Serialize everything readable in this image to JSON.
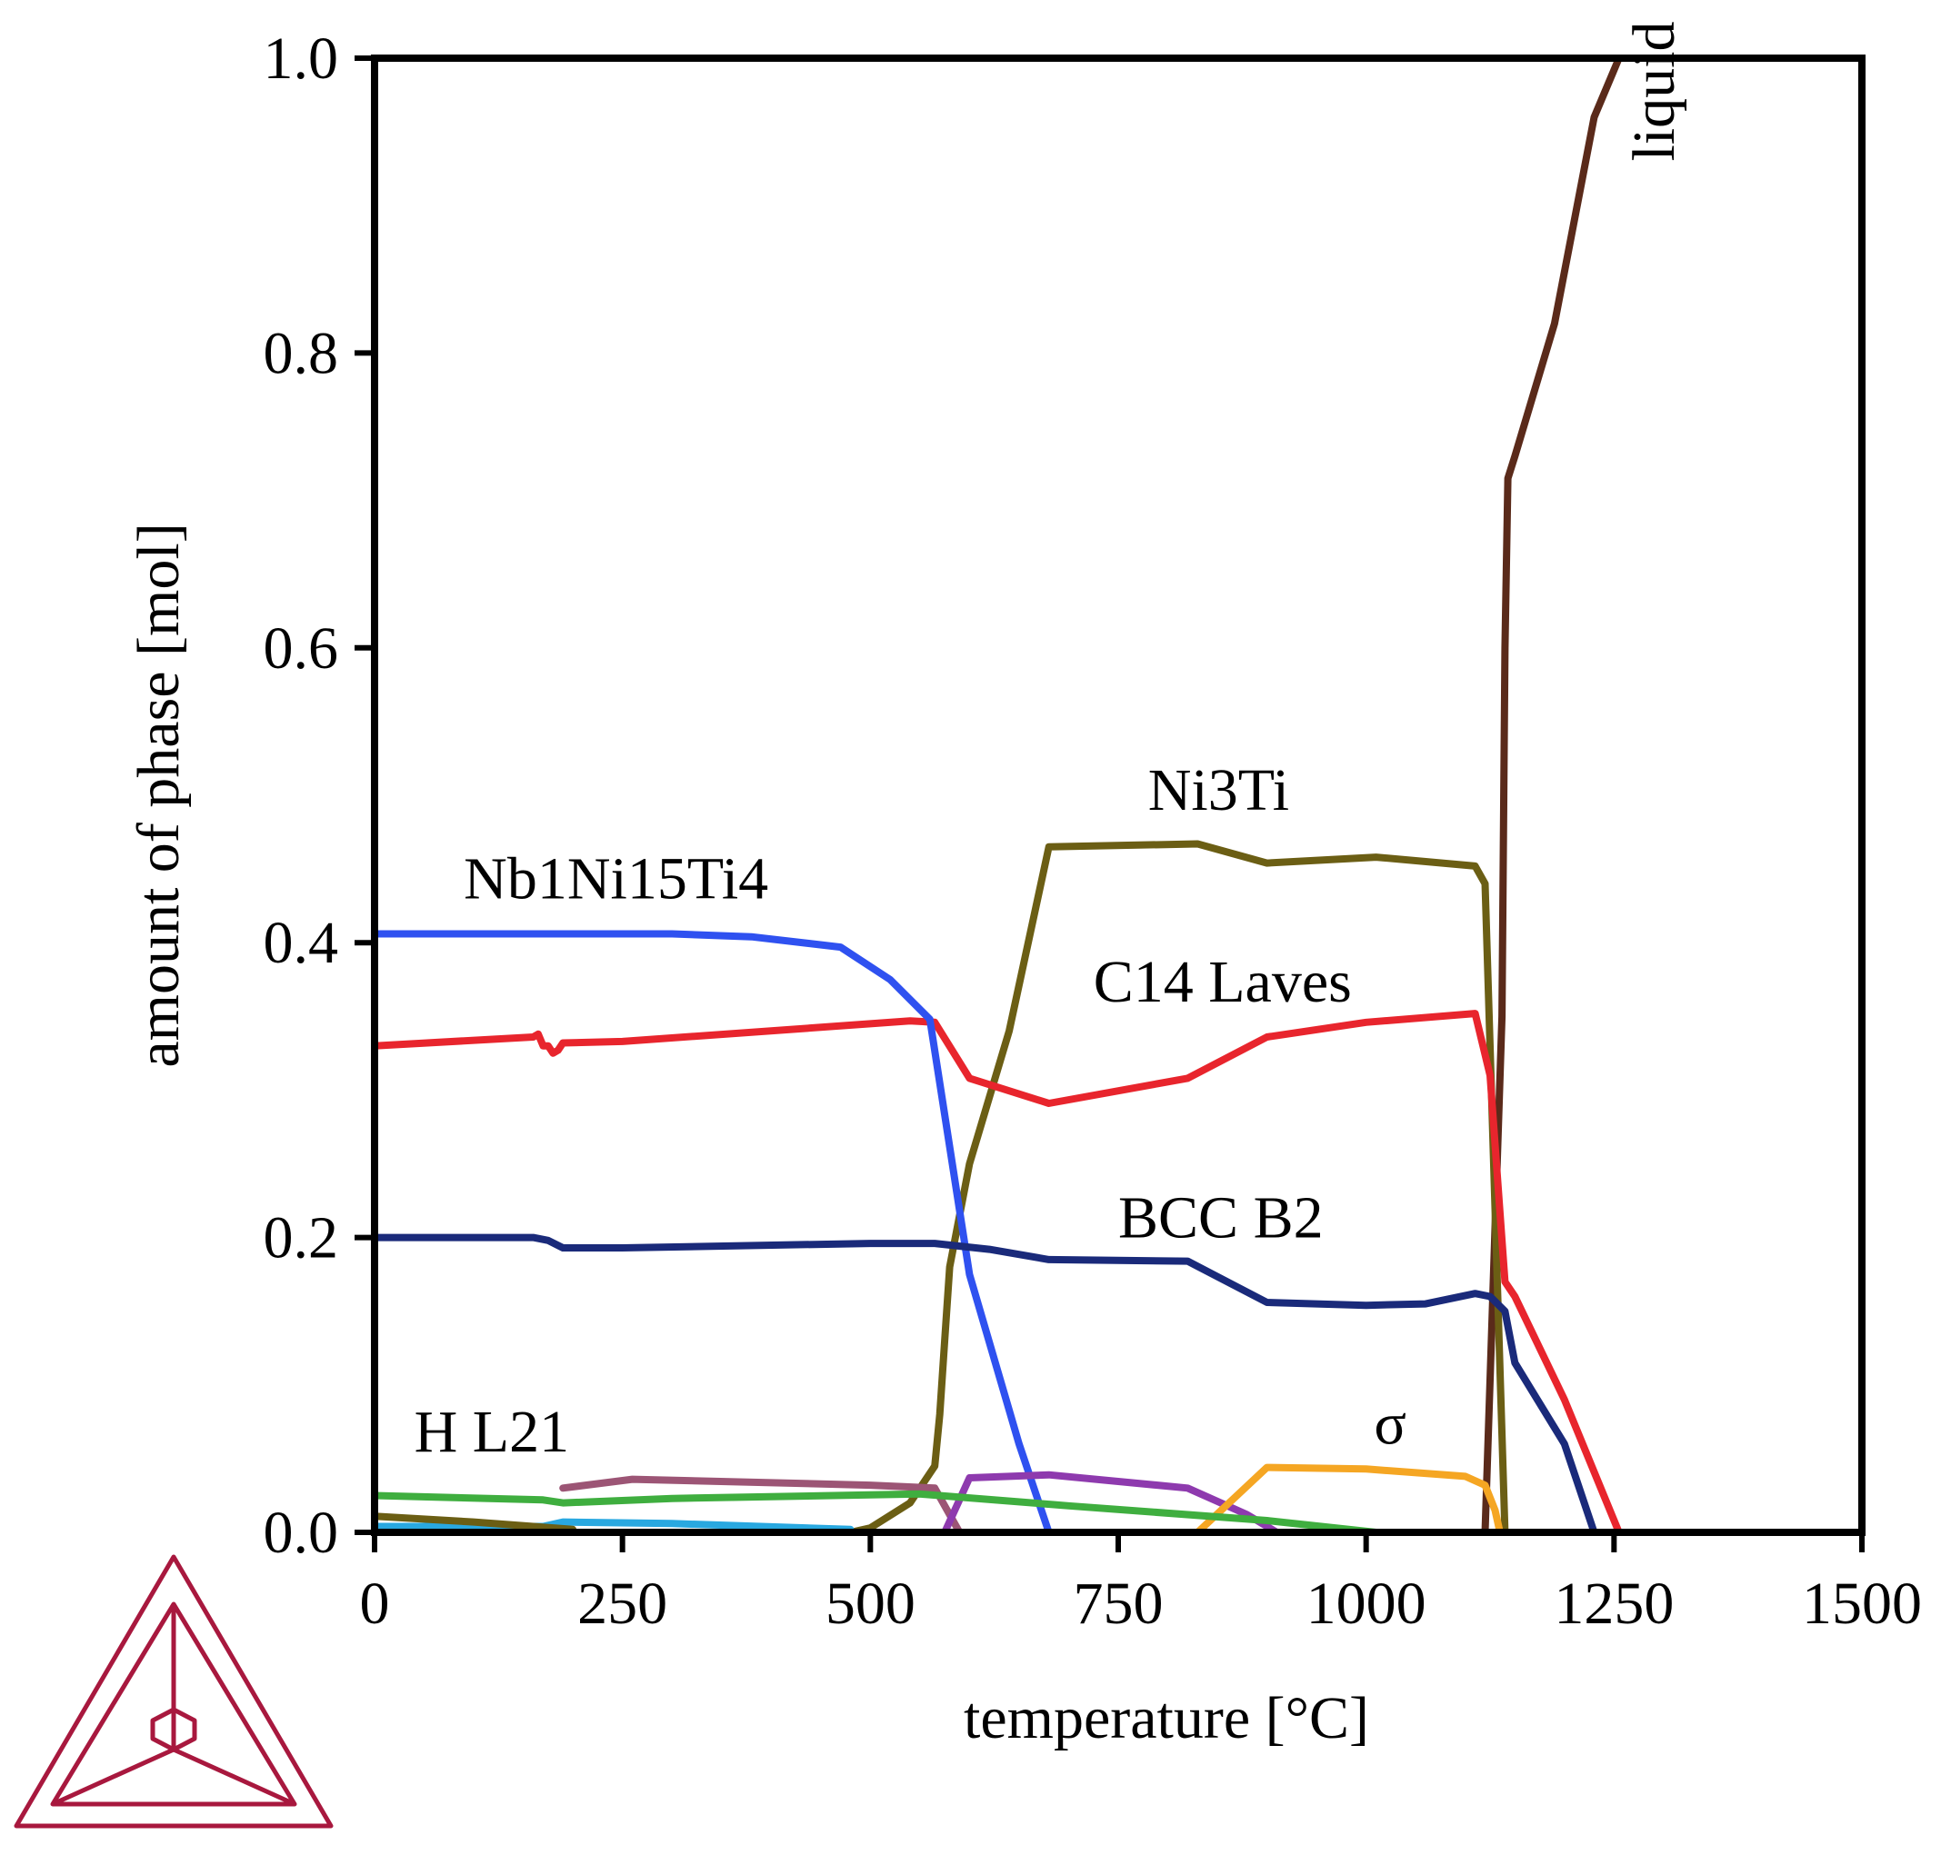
{
  "chart_data": {
    "type": "line",
    "title": "",
    "xlabel": "temperature [°C]",
    "ylabel": "amount of phase [mol]",
    "xlim": [
      0,
      1500
    ],
    "ylim": [
      0,
      1.0
    ],
    "xticks": [
      0,
      250,
      500,
      750,
      1000,
      1250,
      1500
    ],
    "yticks": [
      0.0,
      0.2,
      0.4,
      0.6,
      0.8,
      1.0
    ],
    "xtick_labels": [
      "0",
      "250",
      "500",
      "750",
      "1000",
      "1250",
      "1500"
    ],
    "ytick_labels": [
      "0.0",
      "0.2",
      "0.4",
      "0.6",
      "0.8",
      "1.0"
    ],
    "grid": false,
    "series": [
      {
        "name": "liquid",
        "label": "liquid",
        "color": "#5a2a1a",
        "x": [
          1120,
          1137,
          1140,
          1143,
          1150,
          1190,
          1230,
          1255,
          1500
        ],
        "y": [
          0,
          0.35,
          0.6,
          0.715,
          0.73,
          0.82,
          0.96,
          1.0,
          1.0
        ]
      },
      {
        "name": "Ni3Ti",
        "label": "Ni3Ti",
        "color": "#6b5e14",
        "x": [
          480,
          500,
          540,
          565,
          570,
          575,
          580,
          600,
          640,
          680,
          830,
          900,
          1010,
          1110,
          1120,
          1140
        ],
        "y": [
          0,
          0.003,
          0.02,
          0.045,
          0.08,
          0.13,
          0.18,
          0.25,
          0.34,
          0.465,
          0.467,
          0.454,
          0.458,
          0.452,
          0.44,
          0
        ]
      },
      {
        "name": "C14 Laves",
        "label": "C14 Laves",
        "color": "#e8252d",
        "x": [
          0,
          160,
          165,
          170,
          175,
          180,
          185,
          190,
          250,
          500,
          540,
          565,
          600,
          680,
          820,
          900,
          1000,
          1110,
          1125,
          1140,
          1150,
          1200,
          1255
        ],
        "y": [
          0.33,
          0.336,
          0.338,
          0.33,
          0.33,
          0.325,
          0.327,
          0.332,
          0.333,
          0.345,
          0.347,
          0.346,
          0.308,
          0.291,
          0.308,
          0.336,
          0.346,
          0.352,
          0.31,
          0.17,
          0.16,
          0.09,
          0
        ]
      },
      {
        "name": "Nb1Ni15Ti4",
        "label": "Nb1Ni15Ti4",
        "color": "#2f51f0",
        "x": [
          0,
          300,
          380,
          470,
          520,
          560,
          600,
          650,
          680
        ],
        "y": [
          0.406,
          0.406,
          0.404,
          0.397,
          0.375,
          0.348,
          0.175,
          0.06,
          0
        ]
      },
      {
        "name": "BCC B2",
        "label": "BCC B2",
        "color": "#1a2a7a",
        "x": [
          0,
          160,
          175,
          190,
          250,
          500,
          565,
          620,
          680,
          820,
          900,
          1000,
          1060,
          1110,
          1125,
          1140,
          1150,
          1200,
          1230
        ],
        "y": [
          0.2,
          0.2,
          0.198,
          0.193,
          0.193,
          0.196,
          0.196,
          0.192,
          0.185,
          0.184,
          0.156,
          0.154,
          0.155,
          0.162,
          0.16,
          0.15,
          0.115,
          0.06,
          0
        ]
      },
      {
        "name": "H L21",
        "label": "H L21",
        "color": "#9c5575",
        "x": [
          190,
          260,
          500,
          565,
          590
        ],
        "y": [
          0.03,
          0.036,
          0.032,
          0.03,
          0
        ]
      },
      {
        "name": "purple-phase",
        "label": "",
        "color": "#8e3aae",
        "x": [
          575,
          600,
          680,
          820,
          880,
          910
        ],
        "y": [
          0,
          0.037,
          0.039,
          0.03,
          0.012,
          0
        ]
      },
      {
        "name": "sigma",
        "label": "σ",
        "color": "#f5a623",
        "x": [
          830,
          900,
          1000,
          1100,
          1120,
          1130,
          1135
        ],
        "y": [
          0,
          0.044,
          0.043,
          0.038,
          0.032,
          0.015,
          0
        ]
      },
      {
        "name": "green-phase",
        "label": "",
        "color": "#3fae3f",
        "x": [
          0,
          170,
          190,
          300,
          550,
          700,
          900,
          1010
        ],
        "y": [
          0.025,
          0.022,
          0.02,
          0.023,
          0.026,
          0.018,
          0.008,
          0
        ]
      },
      {
        "name": "cyan-phase",
        "label": "",
        "color": "#29a8e0",
        "x": [
          0,
          170,
          190,
          300,
          480
        ],
        "y": [
          0.004,
          0.004,
          0.007,
          0.006,
          0.002
        ]
      },
      {
        "name": "olive-low-phase",
        "label": "",
        "color": "#6b5e14",
        "x": [
          0,
          100,
          200
        ],
        "y": [
          0.011,
          0.007,
          0.002
        ]
      }
    ],
    "annotations": [
      {
        "text": "liquid",
        "x": 1310,
        "y": 0.93,
        "rotate": -90
      },
      {
        "text": "Ni3Ti",
        "x": 780,
        "y": 0.49
      },
      {
        "text": "Nb1Ni15Ti4",
        "x": 90,
        "y": 0.43
      },
      {
        "text": "C14 Laves",
        "x": 725,
        "y": 0.36
      },
      {
        "text": "BCC B2",
        "x": 750,
        "y": 0.2
      },
      {
        "text": "H L21",
        "x": 40,
        "y": 0.055
      },
      {
        "text": "σ",
        "x": 1008,
        "y": 0.06
      }
    ],
    "logo": "Thermo-Calc triangle logo"
  },
  "logo": {
    "name": "thermocalc-logo-icon",
    "color": "#a8183e"
  }
}
